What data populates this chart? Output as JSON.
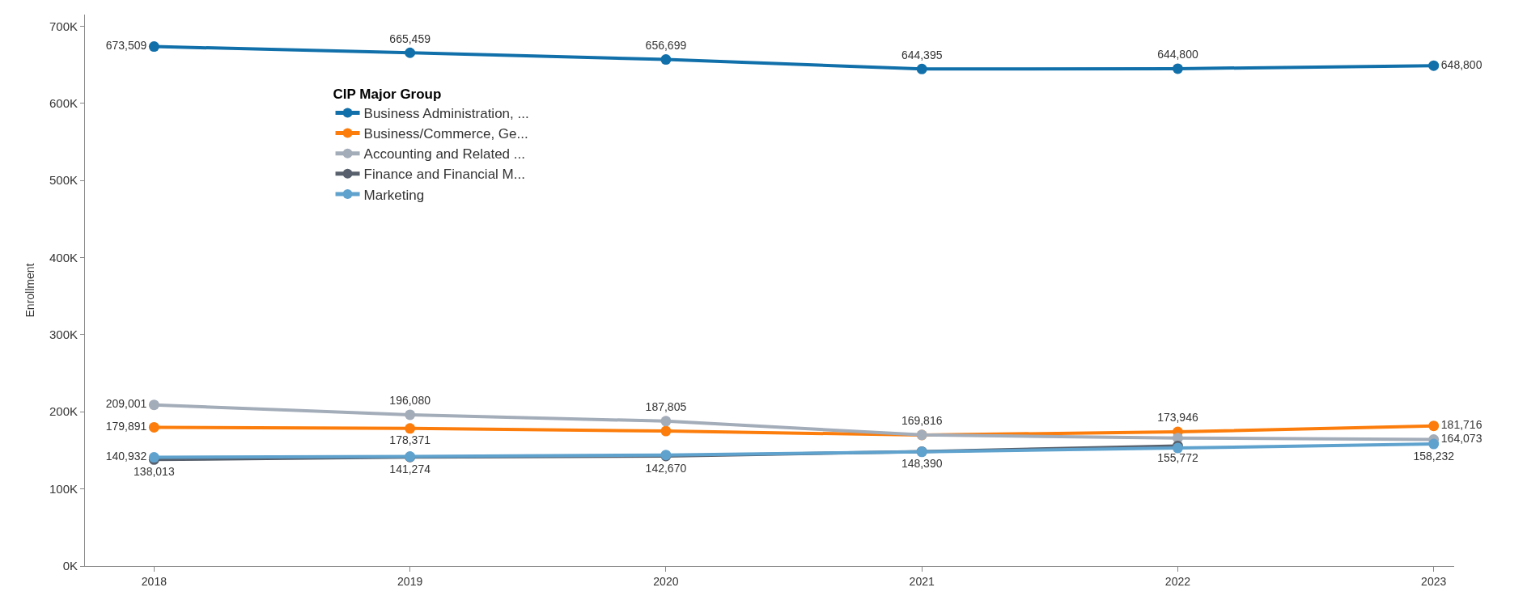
{
  "chart_data": {
    "type": "line",
    "ylabel": "Enrollment",
    "legend_title": "CIP Major Group",
    "categories": [
      "2018",
      "2019",
      "2020",
      "2021",
      "2022",
      "2023"
    ],
    "series": [
      {
        "name": "Business Administration, ...",
        "color": "#1170aa",
        "values": [
          673509,
          665459,
          656699,
          644395,
          644800,
          648800
        ],
        "value_labels": [
          "673,509",
          "665,459",
          "656,699",
          "644,395",
          "644,800",
          "648,800"
        ]
      },
      {
        "name": "Business/Commerce, Ge...",
        "color": "#fc7d0b",
        "values": [
          179891,
          178371,
          175000,
          169816,
          173946,
          181716
        ],
        "value_labels": [
          "179,891",
          "178,371",
          null,
          "169,816",
          "173,946",
          "181,716"
        ]
      },
      {
        "name": "Accounting and Related ...",
        "color": "#a3acb9",
        "values": [
          209001,
          196080,
          187805,
          170000,
          166000,
          164073
        ],
        "value_labels": [
          "209,001",
          "196,080",
          "187,805",
          null,
          null,
          "164,073"
        ]
      },
      {
        "name": "Finance and Financial M...",
        "color": "#57606c",
        "values": [
          138013,
          141274,
          142670,
          148390,
          155772,
          null
        ],
        "value_labels": [
          "138,013",
          "141,274",
          "142,670",
          "148,390",
          "155,772",
          null
        ]
      },
      {
        "name": "Marketing",
        "color": "#5fa2ce",
        "values": [
          140932,
          142000,
          144000,
          148000,
          153000,
          158232
        ],
        "value_labels": [
          "140,932",
          null,
          null,
          null,
          null,
          "158,232"
        ]
      }
    ],
    "ylim": [
      0,
      715000
    ],
    "yticks": [
      {
        "value": 0,
        "label": "0K"
      },
      {
        "value": 100000,
        "label": "100K"
      },
      {
        "value": 200000,
        "label": "200K"
      },
      {
        "value": 300000,
        "label": "300K"
      },
      {
        "value": 400000,
        "label": "400K"
      },
      {
        "value": 500000,
        "label": "500K"
      },
      {
        "value": 600000,
        "label": "600K"
      },
      {
        "value": 700000,
        "label": "700K"
      }
    ],
    "grid": false,
    "legend": "top left",
    "marker": "circle",
    "line_style": "solid"
  }
}
